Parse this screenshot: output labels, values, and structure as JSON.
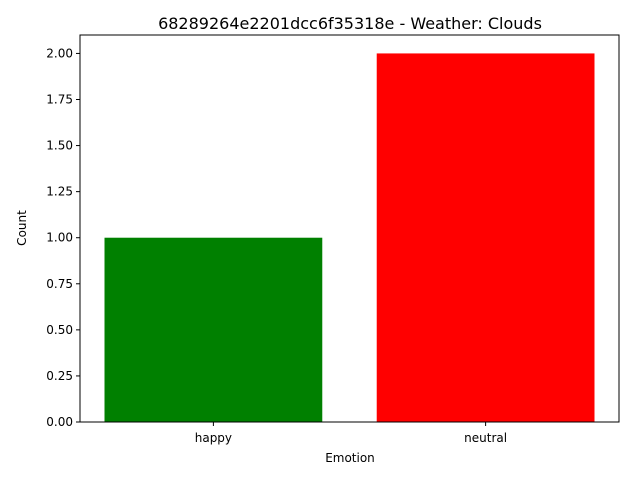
{
  "chart_data": {
    "type": "bar",
    "title": "68289264e2201dcc6f35318e - Weather: Clouds",
    "xlabel": "Emotion",
    "ylabel": "Count",
    "categories": [
      "happy",
      "neutral"
    ],
    "values": [
      1,
      2
    ],
    "colors": [
      "#008000",
      "#ff0000"
    ],
    "ylim": [
      0,
      2.1
    ],
    "yticks": [
      0,
      0.25,
      0.5,
      0.75,
      1.0,
      1.25,
      1.5,
      1.75,
      2.0
    ],
    "ytick_labels": [
      "0.00",
      "0.25",
      "0.50",
      "0.75",
      "1.00",
      "1.25",
      "1.50",
      "1.75",
      "2.00"
    ],
    "grid": false,
    "legend": "none"
  }
}
